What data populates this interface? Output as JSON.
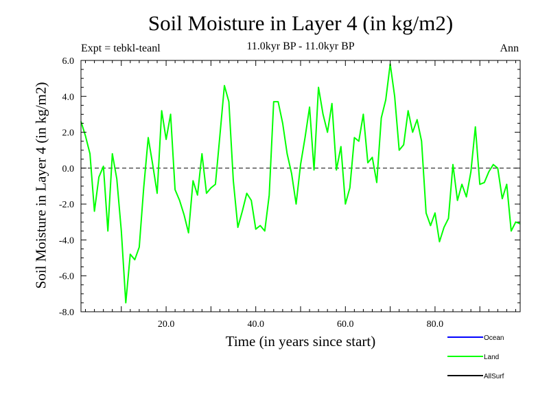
{
  "header": {
    "title": "Soil Moisture in Layer 4 (in kg/m2)",
    "subtitle": "11.0kyr BP - 11.0kyr BP",
    "experiment": "Expt = tebkl-teanl",
    "period": "Ann"
  },
  "chart_data": {
    "type": "line",
    "title": "Soil Moisture in Layer 4 (in kg/m2)",
    "xlabel": "Time (in years since start)",
    "ylabel": "Soil Moisture in Layer 4 (in kg/m2)",
    "xlim": [
      1,
      99
    ],
    "ylim": [
      -8.0,
      6.0
    ],
    "x_ticks": [
      20.0,
      40.0,
      60.0,
      80.0
    ],
    "x_tick_labels": [
      "20.0",
      "40.0",
      "60.0",
      "80.0"
    ],
    "y_ticks": [
      -8.0,
      -6.0,
      -4.0,
      -2.0,
      0.0,
      2.0,
      4.0,
      6.0
    ],
    "y_tick_labels": [
      "-8.0",
      "-6.0",
      "-4.0",
      "-2.0",
      "0.0",
      "2.0",
      "4.0",
      "6.0"
    ],
    "reference_line": {
      "y": 0.0,
      "style": "dashed"
    },
    "legend": [
      {
        "name": "Ocean",
        "color": "#0000ff"
      },
      {
        "name": "Land",
        "color": "#00ff00"
      },
      {
        "name": "AllSurf",
        "color": "#000000"
      }
    ],
    "series": [
      {
        "name": "Land",
        "color": "#00ff00",
        "x": [
          1,
          2,
          3,
          4,
          5,
          6,
          7,
          8,
          9,
          10,
          11,
          12,
          13,
          14,
          15,
          16,
          17,
          18,
          19,
          20,
          21,
          22,
          23,
          24,
          25,
          26,
          27,
          28,
          29,
          30,
          31,
          32,
          33,
          34,
          35,
          36,
          37,
          38,
          39,
          40,
          41,
          42,
          43,
          44,
          45,
          46,
          47,
          48,
          49,
          50,
          51,
          52,
          53,
          54,
          55,
          56,
          57,
          58,
          59,
          60,
          61,
          62,
          63,
          64,
          65,
          66,
          67,
          68,
          69,
          70,
          71,
          72,
          73,
          74,
          75,
          76,
          77,
          78,
          79,
          80,
          81,
          82,
          83,
          84,
          85,
          86,
          87,
          88,
          89,
          90,
          91,
          92,
          93,
          94,
          95,
          96,
          97,
          98,
          99
        ],
        "values": [
          2.6,
          1.8,
          0.8,
          -2.4,
          -0.5,
          0.1,
          -3.5,
          0.8,
          -0.6,
          -3.5,
          -7.5,
          -4.8,
          -5.1,
          -4.4,
          -1.1,
          1.7,
          0.2,
          -1.4,
          3.2,
          1.6,
          3.0,
          -1.2,
          -1.8,
          -2.6,
          -3.6,
          -0.7,
          -1.5,
          0.8,
          -1.4,
          -1.1,
          -0.9,
          1.8,
          4.6,
          3.7,
          -0.7,
          -3.3,
          -2.4,
          -1.4,
          -1.8,
          -3.4,
          -3.2,
          -3.5,
          -1.5,
          3.7,
          3.7,
          2.5,
          0.8,
          -0.3,
          -2.0,
          0.2,
          1.7,
          3.4,
          -0.1,
          4.5,
          3.0,
          2.0,
          3.6,
          -0.1,
          1.2,
          -2.0,
          -1.1,
          1.7,
          1.5,
          3.0,
          0.3,
          0.6,
          -0.8,
          2.8,
          3.8,
          5.8,
          4.0,
          1.0,
          1.3,
          3.2,
          2.0,
          2.7,
          1.5,
          -2.5,
          -3.2,
          -2.5,
          -4.1,
          -3.3,
          -2.8,
          0.2,
          -1.8,
          -0.9,
          -1.6,
          -0.2,
          2.3,
          -0.9,
          -0.8,
          -0.2,
          0.2,
          0.0,
          -1.7,
          -0.9,
          -3.5,
          -3.0,
          -3.1
        ]
      }
    ]
  }
}
